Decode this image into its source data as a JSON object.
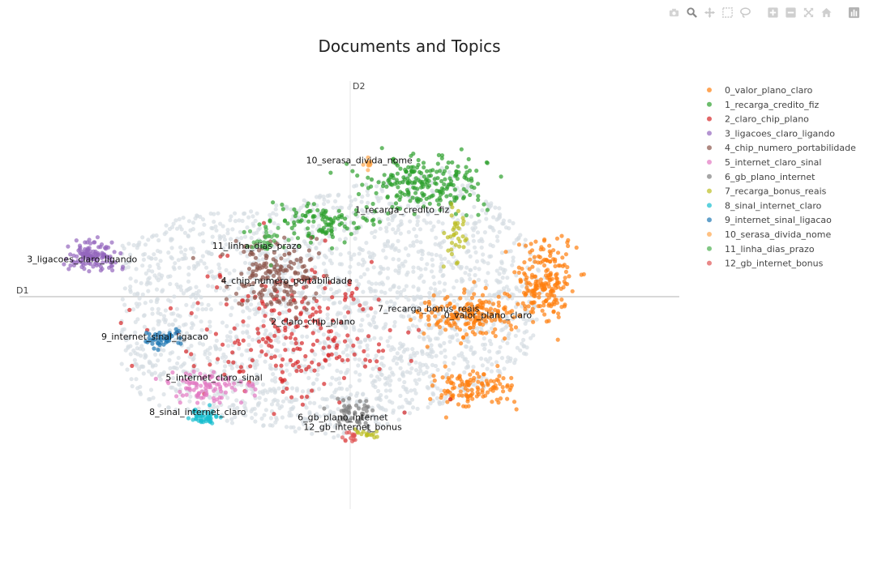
{
  "modebar": {
    "buttons": [
      {
        "name": "camera-icon",
        "title": "Download plot as a png"
      },
      {
        "name": "zoom-icon",
        "title": "Zoom"
      },
      {
        "name": "pan-icon",
        "title": "Pan"
      },
      {
        "name": "box-select-icon",
        "title": "Box Select"
      },
      {
        "name": "lasso-select-icon",
        "title": "Lasso Select"
      },
      {
        "name": "zoom-in-icon",
        "title": "Zoom in"
      },
      {
        "name": "zoom-out-icon",
        "title": "Zoom out"
      },
      {
        "name": "autoscale-icon",
        "title": "Autoscale"
      },
      {
        "name": "home-icon",
        "title": "Reset axes"
      },
      {
        "name": "plotly-logo-icon",
        "title": "Produced with Plotly"
      }
    ]
  },
  "chart_data": {
    "type": "scatter",
    "title": "Documents and Topics",
    "xlabel": "D1",
    "ylabel": "D2",
    "xlim": [
      -10,
      10
    ],
    "ylim": [
      -6.5,
      6.5
    ],
    "grid": false,
    "legend_position": "top-right",
    "background_color": "#d6dde2",
    "background_cloud": {
      "cx": [
        -9.5,
        -6.5,
        -5,
        -3,
        -1,
        1,
        3,
        5,
        6,
        5.5,
        4,
        2,
        0,
        -2,
        -4,
        -6,
        -7.5,
        -8.5
      ],
      "cy": [
        1.0,
        1.7,
        2.4,
        2.6,
        3.0,
        3.6,
        3.9,
        2.3,
        0.8,
        -1.8,
        -2.9,
        -3.6,
        -4.4,
        -4.1,
        -3.9,
        -3.3,
        -2.2,
        -0.8
      ]
    },
    "series": [
      {
        "name": "0_valor_plano_claro",
        "color": "#ff7f0e",
        "label": "0_valor_plano_claro",
        "label_at": [
          4.2,
          -0.7
        ],
        "clusters": [
          [
            5.9,
            0.3,
            0.8,
            1.1,
            200
          ],
          [
            3.6,
            -0.6,
            1.4,
            0.6,
            180
          ],
          [
            3.8,
            -2.9,
            1.3,
            0.5,
            120
          ]
        ]
      },
      {
        "name": "1_recarga_credito_fiz",
        "color": "#2ca02c",
        "label": "1_recarga_credito_fiz",
        "label_at": [
          1.6,
          2.5
        ],
        "clusters": [
          [
            2.1,
            3.4,
            1.6,
            0.8,
            220
          ],
          [
            -0.8,
            2.2,
            1.6,
            0.45,
            110
          ]
        ]
      },
      {
        "name": "2_claro_chip_plano",
        "color": "#d62728",
        "label": "2_claro_chip_plano",
        "label_at": [
          -1.1,
          -0.9
        ],
        "clusters": [
          [
            -1.5,
            -1.2,
            2.8,
            1.8,
            230
          ]
        ]
      },
      {
        "name": "3_ligacoes_claro_ligando",
        "color": "#9467bd",
        "label": "3_ligacoes_claro_ligando",
        "label_at": [
          -8.1,
          1.0
        ],
        "clusters": [
          [
            -7.8,
            1.2,
            0.7,
            0.45,
            130
          ]
        ]
      },
      {
        "name": "4_chip_numero_portabilidade",
        "color": "#8c564b",
        "label": "4_chip_numero_portabilidade",
        "label_at": [
          -1.9,
          0.35
        ],
        "clusters": [
          [
            -2.2,
            0.5,
            1.2,
            1.0,
            170
          ]
        ]
      },
      {
        "name": "5_internet_claro_sinal",
        "color": "#e377c2",
        "label": "5_internet_claro_sinal",
        "label_at": [
          -4.1,
          -2.6
        ],
        "clusters": [
          [
            -4.3,
            -2.8,
            1.2,
            0.4,
            90
          ]
        ]
      },
      {
        "name": "6_gb_plano_internet",
        "color": "#7f7f7f",
        "label": "6_gb_plano_internet",
        "label_at": [
          -0.2,
          -3.8
        ],
        "clusters": [
          [
            0.2,
            -3.6,
            0.7,
            0.4,
            50
          ]
        ]
      },
      {
        "name": "7_recarga_bonus_reais",
        "color": "#bcbd22",
        "label": "7_recarga_bonus_reais",
        "label_at": [
          2.4,
          -0.5
        ],
        "clusters": [
          [
            3.3,
            1.9,
            0.3,
            0.8,
            35
          ],
          [
            0.5,
            -4.2,
            0.3,
            0.15,
            15
          ]
        ]
      },
      {
        "name": "8_sinal_internet_claro",
        "color": "#17becf",
        "label": "8_sinal_internet_claro",
        "label_at": [
          -4.6,
          -3.65
        ],
        "clusters": [
          [
            -4.4,
            -3.7,
            0.35,
            0.22,
            45
          ]
        ]
      },
      {
        "name": "9_internet_sinal_ligacao",
        "color": "#1f77b4",
        "label": "9_internet_sinal_ligacao",
        "label_at": [
          -5.9,
          -1.35
        ],
        "clusters": [
          [
            -5.7,
            -1.3,
            0.5,
            0.25,
            45
          ]
        ]
      },
      {
        "name": "10_serasa_divida_nome",
        "color": "#ffa64d",
        "label": "10_serasa_divida_nome",
        "label_at": [
          0.3,
          4.0
        ],
        "clusters": [
          [
            0.6,
            4.0,
            0.12,
            0.18,
            12
          ]
        ]
      },
      {
        "name": "11_linha_dias_prazo",
        "color": "#4caf50",
        "label": "11_linha_dias_prazo",
        "label_at": [
          -2.8,
          1.4
        ],
        "clusters": [
          [
            -2.6,
            1.6,
            0.5,
            0.4,
            30
          ]
        ]
      },
      {
        "name": "12_gb_internet_bonus",
        "color": "#e05555",
        "label": "12_gb_internet_bonus",
        "label_at": [
          0.1,
          -4.1
        ],
        "clusters": [
          [
            0.0,
            -4.3,
            0.3,
            0.15,
            15
          ]
        ]
      }
    ]
  }
}
